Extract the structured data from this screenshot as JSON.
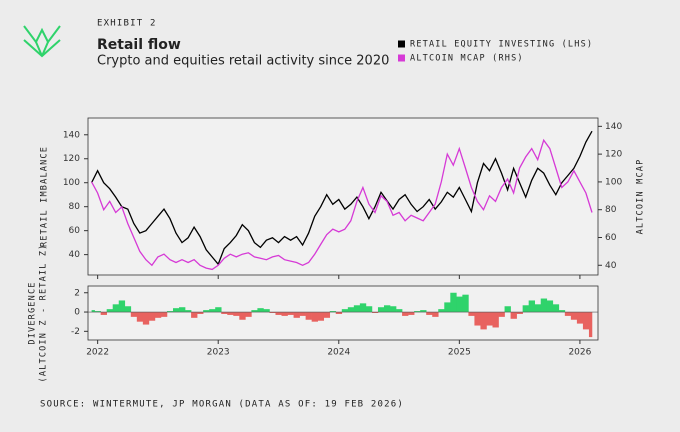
{
  "header": {
    "exhibit": "EXHIBIT 2",
    "title": "Retail flow",
    "subtitle": "Crypto and equities retail activity since 2020"
  },
  "source": "SOURCE: WINTERMUTE, JP MORGAN (DATA AS OF: 19 FEB 2026)",
  "chart_data": [
    {
      "type": "line",
      "legend": "top-right",
      "ylabel": "RETAIL IMBALANCE",
      "y2label": "ALTCOIN MCAP",
      "x": [
        2021.95,
        2022.0,
        2022.05,
        2022.1,
        2022.15,
        2022.2,
        2022.25,
        2022.3,
        2022.35,
        2022.4,
        2022.45,
        2022.5,
        2022.55,
        2022.6,
        2022.65,
        2022.7,
        2022.75,
        2022.8,
        2022.85,
        2022.9,
        2022.95,
        2023.0,
        2023.05,
        2023.1,
        2023.15,
        2023.2,
        2023.25,
        2023.3,
        2023.35,
        2023.4,
        2023.45,
        2023.5,
        2023.55,
        2023.6,
        2023.65,
        2023.7,
        2023.75,
        2023.8,
        2023.85,
        2023.9,
        2023.95,
        2024.0,
        2024.05,
        2024.1,
        2024.15,
        2024.2,
        2024.25,
        2024.3,
        2024.35,
        2024.4,
        2024.45,
        2024.5,
        2024.55,
        2024.6,
        2024.65,
        2024.7,
        2024.75,
        2024.8,
        2024.85,
        2024.9,
        2024.95,
        2025.0,
        2025.05,
        2025.1,
        2025.15,
        2025.2,
        2025.25,
        2025.3,
        2025.35,
        2025.4,
        2025.45,
        2025.5,
        2025.55,
        2025.6,
        2025.65,
        2025.7,
        2025.75,
        2025.8,
        2025.85,
        2025.9,
        2025.95,
        2026.0,
        2026.05,
        2026.1
      ],
      "xlim": [
        2021.92,
        2026.15
      ],
      "ylim": [
        23,
        154
      ],
      "yticks": [
        40,
        60,
        80,
        100,
        120,
        140
      ],
      "y2lim": [
        33,
        146
      ],
      "y2ticks": [
        40,
        60,
        80,
        100,
        120,
        140
      ],
      "series": [
        {
          "name": "RETAIL EQUITY INVESTING (LHS)",
          "color": "#000000",
          "values": [
            100,
            110,
            100,
            95,
            88,
            80,
            78,
            66,
            58,
            60,
            66,
            72,
            78,
            70,
            58,
            50,
            54,
            63,
            55,
            44,
            38,
            32,
            45,
            50,
            56,
            65,
            60,
            50,
            46,
            52,
            54,
            50,
            55,
            52,
            55,
            48,
            58,
            72,
            80,
            90,
            82,
            86,
            78,
            82,
            88,
            80,
            70,
            80,
            92,
            85,
            78,
            86,
            90,
            82,
            76,
            80,
            86,
            78,
            84,
            92,
            88,
            96,
            86,
            76,
            100,
            116,
            110,
            120,
            108,
            94,
            112,
            100,
            88,
            102,
            112,
            108,
            98,
            90,
            100,
            106,
            112,
            122,
            134,
            143
          ]
        },
        {
          "name": "ALTCOIN MCAP (RHS)",
          "color": "#d63ad6",
          "axis": "y2",
          "values": [
            100,
            92,
            80,
            86,
            78,
            82,
            70,
            60,
            50,
            44,
            40,
            46,
            48,
            44,
            42,
            44,
            42,
            44,
            40,
            38,
            37,
            40,
            45,
            48,
            46,
            48,
            49,
            46,
            45,
            44,
            46,
            47,
            44,
            43,
            42,
            40,
            42,
            48,
            55,
            62,
            66,
            64,
            66,
            72,
            86,
            96,
            84,
            78,
            90,
            86,
            76,
            78,
            72,
            76,
            74,
            72,
            78,
            84,
            100,
            120,
            112,
            124,
            110,
            96,
            86,
            80,
            90,
            86,
            96,
            102,
            92,
            110,
            118,
            124,
            116,
            130,
            124,
            110,
            96,
            100,
            108,
            100,
            92,
            78
          ]
        }
      ]
    },
    {
      "type": "area",
      "ylabel": [
        "DIVERGENCE",
        "(ALTCOIN Z - RETAIL Z)"
      ],
      "x": [
        2021.95,
        2022.0,
        2022.05,
        2022.1,
        2022.15,
        2022.2,
        2022.25,
        2022.3,
        2022.35,
        2022.4,
        2022.45,
        2022.5,
        2022.55,
        2022.6,
        2022.65,
        2022.7,
        2022.75,
        2022.8,
        2022.85,
        2022.9,
        2022.95,
        2023.0,
        2023.05,
        2023.1,
        2023.15,
        2023.2,
        2023.25,
        2023.3,
        2023.35,
        2023.4,
        2023.45,
        2023.5,
        2023.55,
        2023.6,
        2023.65,
        2023.7,
        2023.75,
        2023.8,
        2023.85,
        2023.9,
        2023.95,
        2024.0,
        2024.05,
        2024.1,
        2024.15,
        2024.2,
        2024.25,
        2024.3,
        2024.35,
        2024.4,
        2024.45,
        2024.5,
        2024.55,
        2024.6,
        2024.65,
        2024.7,
        2024.75,
        2024.8,
        2024.85,
        2024.9,
        2024.95,
        2025.0,
        2025.05,
        2025.1,
        2025.15,
        2025.2,
        2025.25,
        2025.3,
        2025.35,
        2025.4,
        2025.45,
        2025.5,
        2025.55,
        2025.6,
        2025.65,
        2025.7,
        2025.75,
        2025.8,
        2025.85,
        2025.9,
        2025.95,
        2026.0,
        2026.05,
        2026.1
      ],
      "xlim": [
        2021.92,
        2026.15
      ],
      "xticks": [
        2022,
        2023,
        2024,
        2025,
        2026
      ],
      "ylim": [
        -2.9,
        2.7
      ],
      "yticks": [
        -2,
        0,
        2
      ],
      "positive_color": "#2fd36b",
      "negative_color": "#e8625f",
      "values": [
        0.2,
        0.1,
        -0.3,
        0.3,
        0.8,
        1.2,
        0.6,
        -0.5,
        -1.0,
        -1.3,
        -0.9,
        -0.6,
        -0.5,
        0.1,
        0.4,
        0.5,
        0.2,
        -0.6,
        -0.2,
        0.2,
        0.3,
        0.5,
        -0.2,
        -0.3,
        -0.4,
        -0.8,
        -0.5,
        0.2,
        0.4,
        0.3,
        -0.1,
        -0.3,
        -0.4,
        -0.3,
        -0.6,
        -0.4,
        -0.8,
        -1.0,
        -0.9,
        -0.6,
        0.1,
        -0.2,
        0.3,
        0.5,
        0.7,
        0.9,
        0.6,
        -0.1,
        0.5,
        0.7,
        0.6,
        0.3,
        -0.4,
        -0.3,
        0.1,
        0.2,
        -0.3,
        -0.5,
        0.3,
        1.0,
        2.0,
        1.6,
        1.8,
        -0.4,
        -1.4,
        -1.8,
        -1.4,
        -1.6,
        -0.5,
        0.6,
        -0.7,
        -0.2,
        0.7,
        1.2,
        0.8,
        1.4,
        1.2,
        0.8,
        0.2,
        -0.4,
        -0.8,
        -1.2,
        -1.8,
        -2.6
      ]
    }
  ]
}
